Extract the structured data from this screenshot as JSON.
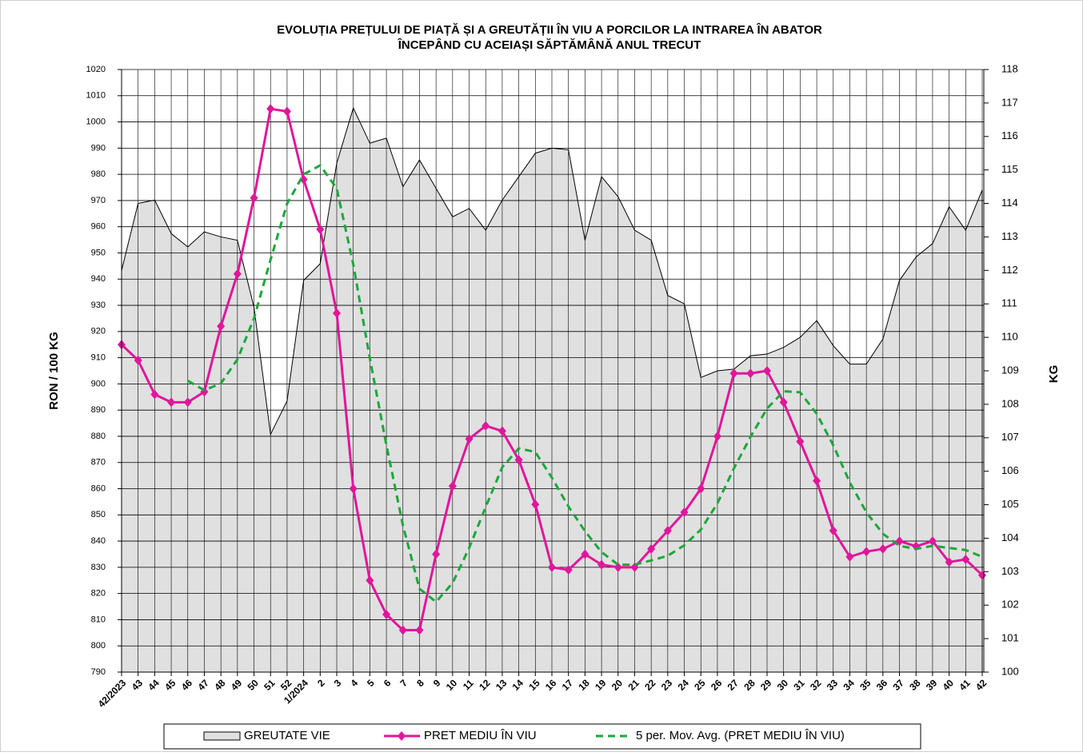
{
  "chart_data": {
    "type": "line",
    "title": "EVOLUȚIA PREȚULUI DE PIAȚĂ ȘI A GREUTĂȚII  ÎN VIU A PORCILOR LA INTRAREA  ÎN ABATOR",
    "subtitle": "ÎNCEPÂND  CU ACEIAȘI SĂPTĂMÂNĂ ANUL TRECUT",
    "ylabel": "RON / 100 KG",
    "y2label": "KG",
    "categories": [
      "42/2023",
      "43",
      "44",
      "45",
      "46",
      "47",
      "48",
      "49",
      "50",
      "51",
      "52",
      "1/2024",
      "2",
      "3",
      "4",
      "5",
      "6",
      "7",
      "8",
      "9",
      "10",
      "11",
      "12",
      "13",
      "14",
      "15",
      "16",
      "17",
      "18",
      "19",
      "20",
      "21",
      "22",
      "23",
      "24",
      "25",
      "26",
      "27",
      "28",
      "29",
      "30",
      "31",
      "32",
      "33",
      "34",
      "35",
      "36",
      "37",
      "38",
      "39",
      "40",
      "41",
      "42"
    ],
    "ylim": [
      790,
      1020
    ],
    "yticks": [
      790,
      800,
      810,
      820,
      830,
      840,
      850,
      860,
      870,
      880,
      890,
      900,
      910,
      920,
      930,
      940,
      950,
      960,
      970,
      980,
      990,
      1000,
      1010,
      1020
    ],
    "y2lim": [
      100,
      118
    ],
    "y2ticks": [
      100,
      101,
      102,
      103,
      104,
      105,
      106,
      107,
      108,
      109,
      110,
      111,
      112,
      113,
      114,
      115,
      116,
      117,
      118
    ],
    "grid": true,
    "legend": "bottom",
    "series": [
      {
        "name": "GREUTATE VIE",
        "type": "area",
        "axis": "y2",
        "color": "#e0e0e0",
        "values": [
          112.0,
          114.0,
          114.1,
          113.1,
          112.7,
          113.15,
          113.0,
          112.9,
          110.9,
          107.1,
          108.1,
          111.7,
          112.2,
          115.2,
          116.85,
          115.8,
          115.95,
          114.5,
          115.3,
          114.45,
          113.6,
          113.85,
          113.2,
          114.1,
          114.8,
          115.5,
          115.65,
          115.6,
          112.9,
          114.8,
          114.2,
          113.2,
          112.9,
          111.25,
          111.0,
          108.8,
          109.0,
          109.05,
          109.45,
          109.5,
          109.7,
          110.0,
          110.5,
          109.75,
          109.2,
          109.2,
          109.95,
          111.7,
          112.4,
          112.8,
          113.9,
          113.2,
          114.4
        ]
      },
      {
        "name": "PRET MEDIU ÎN VIU",
        "type": "line",
        "marker": "diamond",
        "color": "#e0169b",
        "values": [
          915,
          909,
          896,
          893,
          893,
          897,
          922,
          942,
          971,
          1005,
          1004,
          978,
          959,
          927,
          860,
          825,
          812,
          806,
          806,
          835,
          861,
          879,
          884,
          882,
          871,
          854,
          830,
          829,
          835,
          831,
          830,
          830,
          837,
          844,
          851,
          860,
          880,
          904,
          904,
          905,
          893,
          878,
          863,
          844,
          834,
          836,
          837,
          840,
          838,
          840,
          832,
          833,
          827
        ]
      },
      {
        "name": "5 per. Mov. Avg. (PRET MEDIU ÎN VIU)",
        "type": "line",
        "dash": true,
        "color": "#1aa83a",
        "values": [
          null,
          null,
          null,
          null,
          901.2,
          897.6,
          900.2,
          909.4,
          925,
          947.4,
          968.8,
          980,
          983.4,
          974.6,
          945.6,
          909.8,
          876.6,
          846,
          821.8,
          816.8,
          824,
          837.4,
          853,
          868.2,
          875.4,
          874,
          864.2,
          853.2,
          843.8,
          835.8,
          831,
          831,
          832.6,
          834.4,
          838.4,
          844.4,
          854.4,
          867.8,
          879.8,
          890.6,
          897.2,
          896.8,
          888.6,
          876.6,
          862.4,
          851,
          842.8,
          838.2,
          837,
          838.2,
          837.4,
          836.6,
          834
        ]
      }
    ]
  }
}
